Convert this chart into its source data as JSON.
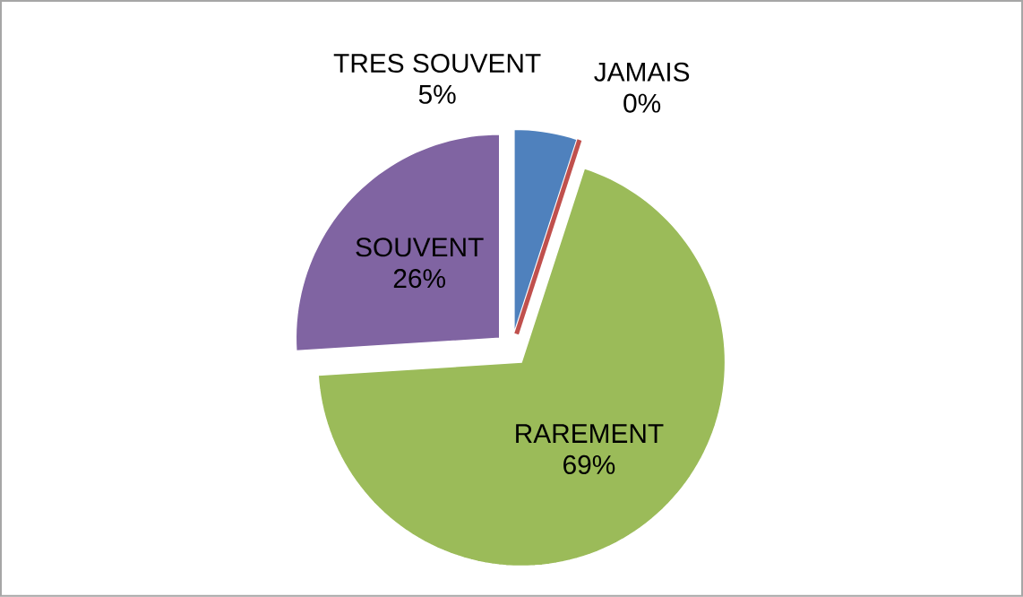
{
  "chart_data": {
    "type": "pie",
    "categories": [
      "TRES SOUVENT",
      "JAMAIS",
      "RAREMENT",
      "SOUVENT"
    ],
    "values": [
      5,
      0,
      69,
      26
    ],
    "value_labels": [
      "5%",
      "0%",
      "69%",
      "26%"
    ],
    "colors": [
      "#4f81bd",
      "#c0504d",
      "#9bbb59",
      "#8064a2"
    ]
  }
}
